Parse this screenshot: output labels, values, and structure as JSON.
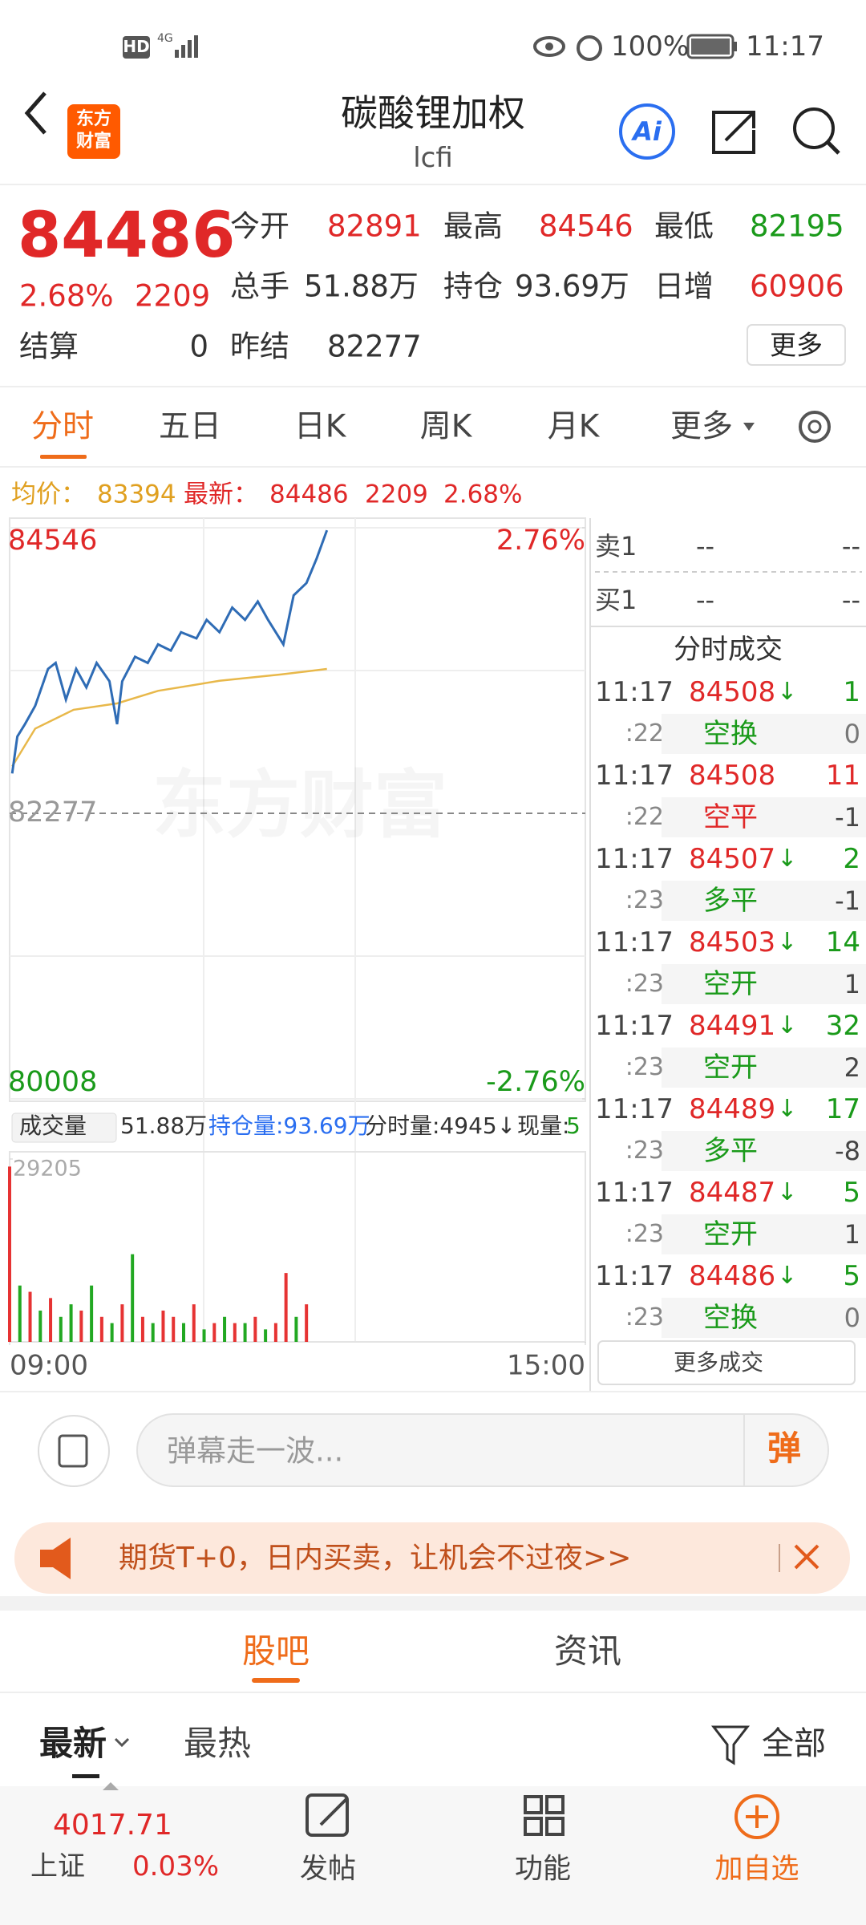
{
  "status_bar": {
    "hd": "HD",
    "network": "4G",
    "battery": "100%",
    "time": "11:17"
  },
  "header": {
    "logo": [
      "东方",
      "财富"
    ],
    "title": "碳酸锂加权",
    "code": "lcfi",
    "ai": "Ai"
  },
  "quote": {
    "price": 84486,
    "change_pct": "2.68%",
    "change": 2209,
    "fields": [
      {
        "label": "今开",
        "value": 82891
      },
      {
        "label": "最高",
        "value": 84546
      },
      {
        "label": "最低",
        "value": 82195
      },
      {
        "label": "总手",
        "value": "51.88万"
      },
      {
        "label": "持仓",
        "value": "93.69万"
      },
      {
        "label": "日增",
        "value": 60906
      },
      {
        "label": "结算",
        "value": 0
      },
      {
        "label": "昨结",
        "value": 82277
      }
    ],
    "more": "更多"
  },
  "tabs": [
    "分时",
    "五日",
    "日K",
    "周K",
    "月K",
    "更多"
  ],
  "summary": {
    "avg_label": "均价：",
    "avg": 83394,
    "last_label": "最新：",
    "last": 84486,
    "change": 2209,
    "change_pct": "2.68%"
  },
  "chart_data": {
    "type": "line",
    "watermark": "东方财富",
    "xlim": [
      0,
      225
    ],
    "xticks": [
      {
        "value": 0,
        "label": "09:00"
      },
      {
        "value": 225,
        "label": "15:00"
      }
    ],
    "ylim": [
      80008,
      84546
    ],
    "yticks": [
      80008,
      82277,
      84546
    ],
    "y2lim": [
      -2.76,
      2.76
    ],
    "y2ticks": [
      {
        "value": -2.76,
        "label": "-2.76%"
      },
      {
        "value": 2.76,
        "label": "2.76%"
      }
    ],
    "price": {
      "color": "#2f6cb5",
      "x": [
        1,
        3,
        6,
        10,
        15,
        18,
        22,
        26,
        30,
        34,
        39,
        42,
        44,
        49,
        54,
        58,
        63,
        67,
        73,
        77,
        82,
        87,
        92,
        97,
        101,
        107,
        111,
        116,
        120,
        124
      ],
      "values": [
        82594,
        82887,
        82985,
        83131,
        83424,
        83472,
        83180,
        83424,
        83277,
        83472,
        83326,
        82985,
        83326,
        83521,
        83472,
        83619,
        83570,
        83716,
        83667,
        83814,
        83716,
        83912,
        83814,
        83960,
        83814,
        83619,
        84009,
        84107,
        84302,
        84526
      ]
    },
    "average": {
      "color": "#e8b84a",
      "x": [
        1,
        10,
        25,
        42,
        58,
        82,
        106,
        124
      ],
      "values": [
        82650,
        82950,
        83100,
        83150,
        83250,
        83330,
        83380,
        83424
      ]
    },
    "volume": {
      "label": "成交量",
      "total": "51.88万",
      "oi": "持仓量:93.69万",
      "tick": "分时量:4945↓",
      "now_label": "现量:",
      "now": "5",
      "ylim": [
        0,
        29205
      ],
      "yticks": [
        29205
      ],
      "x": [
        0,
        4,
        8,
        12,
        16,
        20,
        24,
        28,
        32,
        36,
        40,
        44,
        48,
        52,
        56,
        60,
        64,
        68,
        72,
        76,
        80,
        84,
        88,
        92,
        96,
        100,
        104,
        108,
        112,
        116
      ],
      "values": [
        28000,
        9000,
        8000,
        5000,
        7000,
        4000,
        6000,
        5000,
        9000,
        4000,
        3000,
        6000,
        14000,
        4000,
        3000,
        5000,
        4000,
        3000,
        6000,
        2000,
        3000,
        4000,
        3000,
        3000,
        4000,
        2000,
        3000,
        11000,
        4000,
        6000
      ],
      "colors": [
        "#e63333",
        "#22a822",
        "#e63333",
        "#22a822",
        "#e63333",
        "#22a822",
        "#22a822",
        "#e63333",
        "#22a822",
        "#e63333",
        "#22a822",
        "#e63333",
        "#22a822",
        "#e63333",
        "#22a822",
        "#e63333",
        "#e63333",
        "#22a822",
        "#e63333",
        "#22a822",
        "#e63333",
        "#22a822",
        "#e63333",
        "#22a822",
        "#e63333",
        "#22a822",
        "#e63333",
        "#e63333",
        "#22a822",
        "#e63333"
      ]
    }
  },
  "order_book": {
    "asks": [
      {
        "label": "卖1",
        "price": "--",
        "volume": "--"
      }
    ],
    "bids": [
      {
        "label": "买1",
        "price": "--",
        "volume": "--"
      }
    ],
    "title": "分时成交",
    "trades": [
      {
        "time": "11:17",
        "price": 84508,
        "arrow": "↓",
        "volume": 1,
        "sub": ":22",
        "type": "空换",
        "change": 0
      },
      {
        "time": "11:17",
        "price": 84508,
        "volume": 11,
        "sub": ":22",
        "type": "空平",
        "change": -1
      },
      {
        "time": "11:17",
        "price": 84507,
        "arrow": "↓",
        "volume": 2,
        "sub": ":23",
        "type": "多平",
        "change": -1
      },
      {
        "time": "11:17",
        "price": 84503,
        "arrow": "↓",
        "volume": 14,
        "sub": ":23",
        "type": "空开",
        "change": 1
      },
      {
        "time": "11:17",
        "price": 84491,
        "arrow": "↓",
        "volume": 32,
        "sub": ":23",
        "type": "空开",
        "change": 2
      },
      {
        "time": "11:17",
        "price": 84489,
        "arrow": "↓",
        "volume": 17,
        "sub": ":23",
        "type": "多平",
        "change": -8
      },
      {
        "time": "11:17",
        "price": 84487,
        "arrow": "↓",
        "volume": 5,
        "sub": ":23",
        "type": "空开",
        "change": 1
      },
      {
        "time": "11:17",
        "price": 84486,
        "arrow": "↓",
        "volume": 5,
        "sub": ":23",
        "type": "空换",
        "change": 0
      }
    ],
    "more": "更多成交"
  },
  "comment": {
    "placeholder": "弹幕走一波...",
    "button": "弹"
  },
  "banner": {
    "text": "期货T+0，日内买卖，让机会不过夜>>"
  },
  "section_tabs": [
    "股吧",
    "资讯"
  ],
  "feed_tabs": [
    "最新",
    "最热"
  ],
  "filter": "全部",
  "nav": {
    "index": {
      "value": 4017.71,
      "name": "上证",
      "change": "0.03%"
    },
    "items": [
      "发帖",
      "功能",
      "加自选"
    ]
  }
}
